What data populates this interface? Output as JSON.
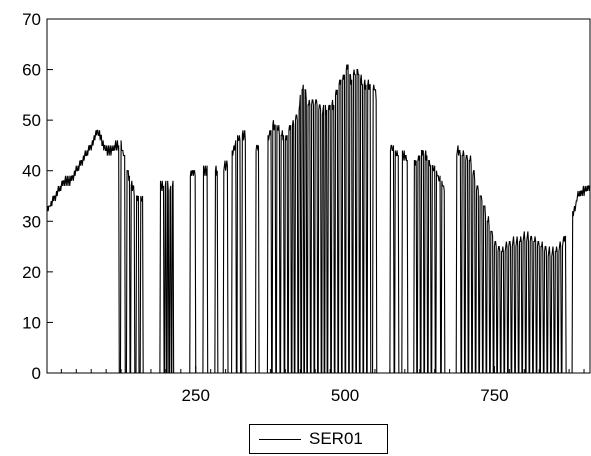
{
  "chart_data": {
    "type": "line",
    "title": "",
    "xlabel": "",
    "ylabel": "",
    "xlim": [
      1,
      910
    ],
    "ylim": [
      0,
      70
    ],
    "x_ticks": [
      250,
      500,
      750
    ],
    "x_tick_labels": [
      "250",
      "500",
      "750"
    ],
    "y_ticks": [
      0,
      10,
      20,
      30,
      40,
      50,
      60,
      70
    ],
    "y_tick_labels": [
      "0",
      "10",
      "20",
      "30",
      "40",
      "50",
      "60",
      "70"
    ],
    "grid": false,
    "legend": "bottom-center",
    "series": [
      {
        "name": "SER01",
        "color": "#000000",
        "envelope": [
          [
            1,
            32
          ],
          [
            10,
            34
          ],
          [
            20,
            36
          ],
          [
            30,
            38
          ],
          [
            40,
            38
          ],
          [
            50,
            40
          ],
          [
            60,
            42
          ],
          [
            70,
            44
          ],
          [
            80,
            46
          ],
          [
            85,
            48
          ],
          [
            90,
            47
          ],
          [
            95,
            45
          ],
          [
            100,
            44
          ],
          [
            110,
            44
          ],
          [
            115,
            45
          ],
          [
            125,
            45
          ],
          [
            130,
            43
          ],
          [
            140,
            38
          ],
          [
            150,
            35
          ],
          [
            160,
            34
          ],
          [
            165,
            35
          ],
          [
            175,
            36
          ],
          [
            190,
            37
          ],
          [
            200,
            37
          ],
          [
            210,
            37
          ],
          [
            220,
            37
          ],
          [
            235,
            39
          ],
          [
            250,
            40
          ],
          [
            270,
            40
          ],
          [
            285,
            40
          ],
          [
            300,
            41
          ],
          [
            310,
            43
          ],
          [
            320,
            46
          ],
          [
            330,
            47
          ],
          [
            340,
            47
          ],
          [
            350,
            45
          ],
          [
            360,
            44
          ],
          [
            370,
            46
          ],
          [
            380,
            49
          ],
          [
            390,
            48
          ],
          [
            400,
            46
          ],
          [
            410,
            49
          ],
          [
            420,
            51
          ],
          [
            430,
            57
          ],
          [
            440,
            53
          ],
          [
            450,
            54
          ],
          [
            460,
            52
          ],
          [
            470,
            52
          ],
          [
            480,
            53
          ],
          [
            490,
            57
          ],
          [
            500,
            59
          ],
          [
            505,
            61
          ],
          [
            510,
            58
          ],
          [
            520,
            60
          ],
          [
            530,
            57
          ],
          [
            540,
            57
          ],
          [
            550,
            56
          ],
          [
            560,
            50
          ],
          [
            570,
            46
          ],
          [
            580,
            44
          ],
          [
            590,
            43
          ],
          [
            600,
            43
          ],
          [
            610,
            41
          ],
          [
            620,
            42
          ],
          [
            630,
            44
          ],
          [
            640,
            42
          ],
          [
            650,
            40
          ],
          [
            660,
            38
          ],
          [
            670,
            35
          ],
          [
            680,
            43
          ],
          [
            690,
            44
          ],
          [
            700,
            43
          ],
          [
            710,
            42
          ],
          [
            720,
            37
          ],
          [
            730,
            34
          ],
          [
            740,
            30
          ],
          [
            750,
            26
          ],
          [
            760,
            24
          ],
          [
            770,
            25
          ],
          [
            780,
            26
          ],
          [
            790,
            26
          ],
          [
            800,
            27
          ],
          [
            810,
            27
          ],
          [
            820,
            26
          ],
          [
            830,
            25
          ],
          [
            840,
            24
          ],
          [
            850,
            24
          ],
          [
            860,
            25
          ],
          [
            870,
            27
          ],
          [
            880,
            31
          ],
          [
            890,
            35
          ],
          [
            900,
            36
          ],
          [
            910,
            37
          ]
        ],
        "zero_segments": [
          [
            122,
            124
          ],
          [
            132,
            134
          ],
          [
            140,
            141
          ],
          [
            148,
            150
          ],
          [
            155,
            157
          ],
          [
            162,
            190
          ],
          [
            197,
            198
          ],
          [
            201,
            202
          ],
          [
            205,
            206
          ],
          [
            209,
            210
          ],
          [
            213,
            240
          ],
          [
            250,
            262
          ],
          [
            270,
            282
          ],
          [
            287,
            296
          ],
          [
            304,
            310
          ],
          [
            318,
            319
          ],
          [
            325,
            327
          ],
          [
            334,
            350
          ],
          [
            356,
            370
          ],
          [
            377,
            378
          ],
          [
            384,
            385
          ],
          [
            391,
            392
          ],
          [
            398,
            399
          ],
          [
            404,
            405
          ],
          [
            410,
            411
          ],
          [
            415,
            416
          ],
          [
            421,
            422
          ],
          [
            426,
            427
          ],
          [
            431,
            432
          ],
          [
            436,
            437
          ],
          [
            442,
            443
          ],
          [
            448,
            449
          ],
          [
            454,
            455
          ],
          [
            460,
            461
          ],
          [
            465,
            466
          ],
          [
            470,
            471
          ],
          [
            476,
            477
          ],
          [
            482,
            483
          ],
          [
            488,
            489
          ],
          [
            494,
            495
          ],
          [
            500,
            501
          ],
          [
            506,
            507
          ],
          [
            512,
            513
          ],
          [
            518,
            519
          ],
          [
            524,
            525
          ],
          [
            530,
            531
          ],
          [
            536,
            537
          ],
          [
            543,
            546
          ],
          [
            553,
            575
          ],
          [
            582,
            583
          ],
          [
            590,
            595
          ],
          [
            605,
            615
          ],
          [
            620,
            621
          ],
          [
            626,
            627
          ],
          [
            632,
            633
          ],
          [
            638,
            639
          ],
          [
            644,
            645
          ],
          [
            651,
            652
          ],
          [
            660,
            661
          ],
          [
            667,
            686
          ],
          [
            694,
            695
          ],
          [
            700,
            701
          ],
          [
            706,
            707
          ],
          [
            712,
            713
          ],
          [
            718,
            719
          ],
          [
            724,
            725
          ],
          [
            730,
            731
          ],
          [
            736,
            737
          ],
          [
            742,
            743
          ],
          [
            748,
            749
          ],
          [
            754,
            755
          ],
          [
            760,
            761
          ],
          [
            766,
            767
          ],
          [
            772,
            773
          ],
          [
            778,
            779
          ],
          [
            784,
            785
          ],
          [
            790,
            791
          ],
          [
            796,
            797
          ],
          [
            802,
            803
          ],
          [
            808,
            809
          ],
          [
            814,
            815
          ],
          [
            820,
            821
          ],
          [
            826,
            827
          ],
          [
            832,
            833
          ],
          [
            838,
            839
          ],
          [
            844,
            845
          ],
          [
            850,
            851
          ],
          [
            856,
            857
          ],
          [
            862,
            863
          ],
          [
            870,
            880
          ]
        ]
      }
    ]
  }
}
